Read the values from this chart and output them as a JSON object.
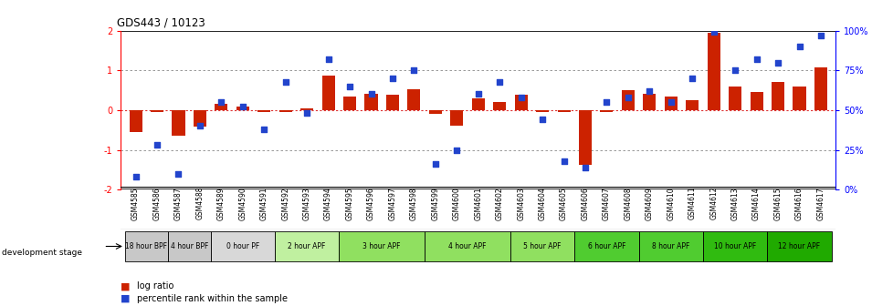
{
  "title": "GDS443 / 10123",
  "samples": [
    "GSM4585",
    "GSM4586",
    "GSM4587",
    "GSM4588",
    "GSM4589",
    "GSM4590",
    "GSM4591",
    "GSM4592",
    "GSM4593",
    "GSM4594",
    "GSM4595",
    "GSM4596",
    "GSM4597",
    "GSM4598",
    "GSM4599",
    "GSM4600",
    "GSM4601",
    "GSM4602",
    "GSM4603",
    "GSM4604",
    "GSM4605",
    "GSM4606",
    "GSM4607",
    "GSM4608",
    "GSM4609",
    "GSM4610",
    "GSM4611",
    "GSM4612",
    "GSM4613",
    "GSM4614",
    "GSM4615",
    "GSM4616",
    "GSM4617"
  ],
  "log_ratio": [
    -0.55,
    -0.05,
    -0.65,
    -0.42,
    0.15,
    0.08,
    -0.05,
    -0.05,
    0.05,
    0.88,
    0.35,
    0.4,
    0.38,
    0.52,
    -0.1,
    -0.38,
    0.3,
    0.2,
    0.38,
    -0.05,
    -0.05,
    -1.38,
    -0.05,
    0.5,
    0.4,
    0.35,
    0.25,
    1.95,
    0.6,
    0.45,
    0.7,
    0.6,
    1.08
  ],
  "percentile": [
    8,
    28,
    10,
    40,
    55,
    52,
    38,
    68,
    48,
    82,
    65,
    60,
    70,
    75,
    16,
    25,
    60,
    68,
    58,
    44,
    18,
    14,
    55,
    58,
    62,
    55,
    70,
    99,
    75,
    82,
    80,
    90,
    97
  ],
  "stages": [
    {
      "label": "18 hour BPF",
      "start": 0,
      "end": 2,
      "color": "#c8c8c8"
    },
    {
      "label": "4 hour BPF",
      "start": 2,
      "end": 4,
      "color": "#c8c8c8"
    },
    {
      "label": "0 hour PF",
      "start": 4,
      "end": 7,
      "color": "#d8d8d8"
    },
    {
      "label": "2 hour APF",
      "start": 7,
      "end": 10,
      "color": "#c0f0a0"
    },
    {
      "label": "3 hour APF",
      "start": 10,
      "end": 14,
      "color": "#90e060"
    },
    {
      "label": "4 hour APF",
      "start": 14,
      "end": 18,
      "color": "#90e060"
    },
    {
      "label": "5 hour APF",
      "start": 18,
      "end": 21,
      "color": "#90e060"
    },
    {
      "label": "6 hour APF",
      "start": 21,
      "end": 24,
      "color": "#50cc30"
    },
    {
      "label": "8 hour APF",
      "start": 24,
      "end": 27,
      "color": "#50cc30"
    },
    {
      "label": "10 hour APF",
      "start": 27,
      "end": 30,
      "color": "#30bb10"
    },
    {
      "label": "12 hour APF",
      "start": 30,
      "end": 33,
      "color": "#20aa00"
    }
  ],
  "bar_color": "#cc2200",
  "dot_color": "#2244cc",
  "zero_line_color": "#dd3333",
  "dotted_line_color": "#888888",
  "ylim": [
    -2.0,
    2.0
  ],
  "legend_log": "log ratio",
  "legend_pct": "percentile rank within the sample"
}
